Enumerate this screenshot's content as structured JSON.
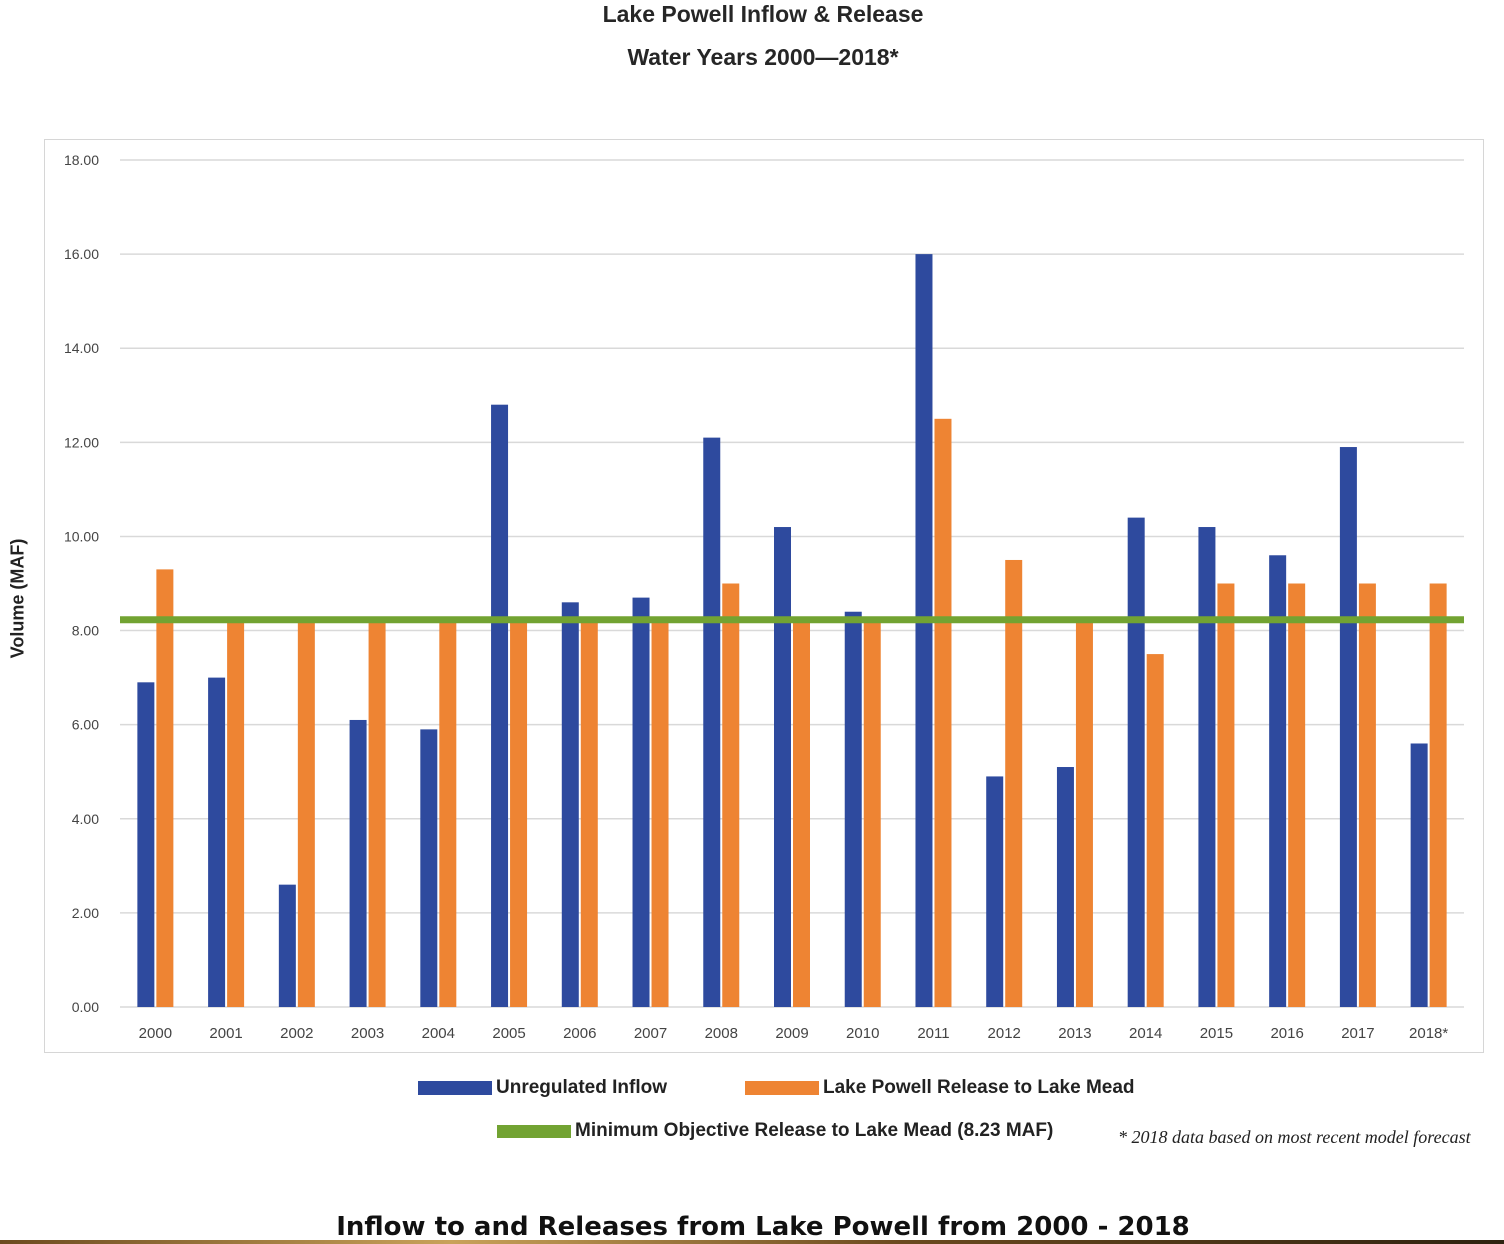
{
  "chart_data": {
    "type": "bar",
    "title": "Lake Powell Inflow & Release",
    "subtitle": "Water Years 2000—2018*",
    "ylabel": "Volume (MAF)",
    "xlabel": "",
    "ylim": [
      0,
      18
    ],
    "yticks": [
      "0.00",
      "2.00",
      "4.00",
      "6.00",
      "8.00",
      "10.00",
      "12.00",
      "14.00",
      "16.00",
      "18.00"
    ],
    "grid": true,
    "legend_position": "bottom",
    "categories": [
      "2000",
      "2001",
      "2002",
      "2003",
      "2004",
      "2005",
      "2006",
      "2007",
      "2008",
      "2009",
      "2010",
      "2011",
      "2012",
      "2013",
      "2014",
      "2015",
      "2016",
      "2017",
      "2018*"
    ],
    "series": [
      {
        "name": "Unregulated Inflow",
        "color": "#2e4a9e",
        "values": [
          6.9,
          7.0,
          2.6,
          6.1,
          5.9,
          12.8,
          8.6,
          8.7,
          12.1,
          10.2,
          8.4,
          16.0,
          4.9,
          5.1,
          10.4,
          10.2,
          9.6,
          11.9,
          5.6
        ]
      },
      {
        "name": "Lake Powell Release to Lake Mead",
        "color": "#ee8433",
        "values": [
          9.3,
          8.23,
          8.23,
          8.23,
          8.23,
          8.23,
          8.23,
          8.23,
          9.0,
          8.23,
          8.23,
          12.5,
          9.5,
          8.23,
          7.5,
          9.0,
          9.0,
          9.0,
          9.0
        ]
      }
    ],
    "reference_line": {
      "name": "Minimum Objective Release to Lake Mead (8.23 MAF)",
      "value": 8.23,
      "color": "#72a332"
    },
    "footnote": "* 2018 data based on most recent model forecast"
  },
  "caption": "Inflow to and Releases from Lake Powell from 2000 - 2018"
}
